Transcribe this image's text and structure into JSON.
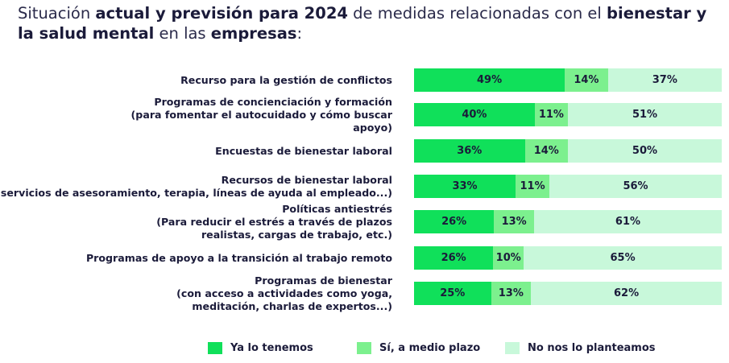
{
  "title": {
    "parts": [
      {
        "text": "Situación ",
        "bold": false
      },
      {
        "text": "actual y previsión para 2024",
        "bold": true
      },
      {
        "text": " de medidas relacionadas con el ",
        "bold": false
      },
      {
        "text": "bienestar y la salud mental",
        "bold": true
      },
      {
        "text": " en las ",
        "bold": false
      },
      {
        "text": "empresas",
        "bold": true
      },
      {
        "text": ":",
        "bold": false
      }
    ]
  },
  "chart_data": {
    "type": "bar",
    "orientation": "horizontal",
    "stacked": true,
    "categories": [
      [
        "Recurso para la gestión de conflictos"
      ],
      [
        "Programas de concienciación y formación",
        "(para fomentar el autocuidado y cómo buscar",
        "apoyo)"
      ],
      [
        "Encuestas de bienestar laboral"
      ],
      [
        "Recursos de bienestar laboral",
        "(servicios de asesoramiento, terapia, líneas de ayuda al empleado...)"
      ],
      [
        "Políticas antiestrés",
        "(Para reducir el estrés a través de plazos",
        "realistas, cargas de trabajo, etc.)"
      ],
      [
        "Programas de apoyo a la transición al trabajo remoto"
      ],
      [
        "Programas de bienestar",
        "(con acceso a actividades como yoga,",
        "meditación, charlas de expertos...)"
      ]
    ],
    "series": [
      {
        "name": "Ya lo tenemos",
        "color": "#10e05a",
        "values": [
          49,
          40,
          36,
          33,
          26,
          26,
          25
        ]
      },
      {
        "name": "Sí, a medio plazo",
        "color": "#7cf08e",
        "values": [
          14,
          11,
          14,
          11,
          13,
          10,
          13
        ]
      },
      {
        "name": "No nos lo planteamos",
        "color": "#c8f8da",
        "values": [
          37,
          51,
          50,
          56,
          61,
          65,
          62
        ]
      }
    ],
    "value_suffix": "%",
    "legend_position": "bottom"
  }
}
